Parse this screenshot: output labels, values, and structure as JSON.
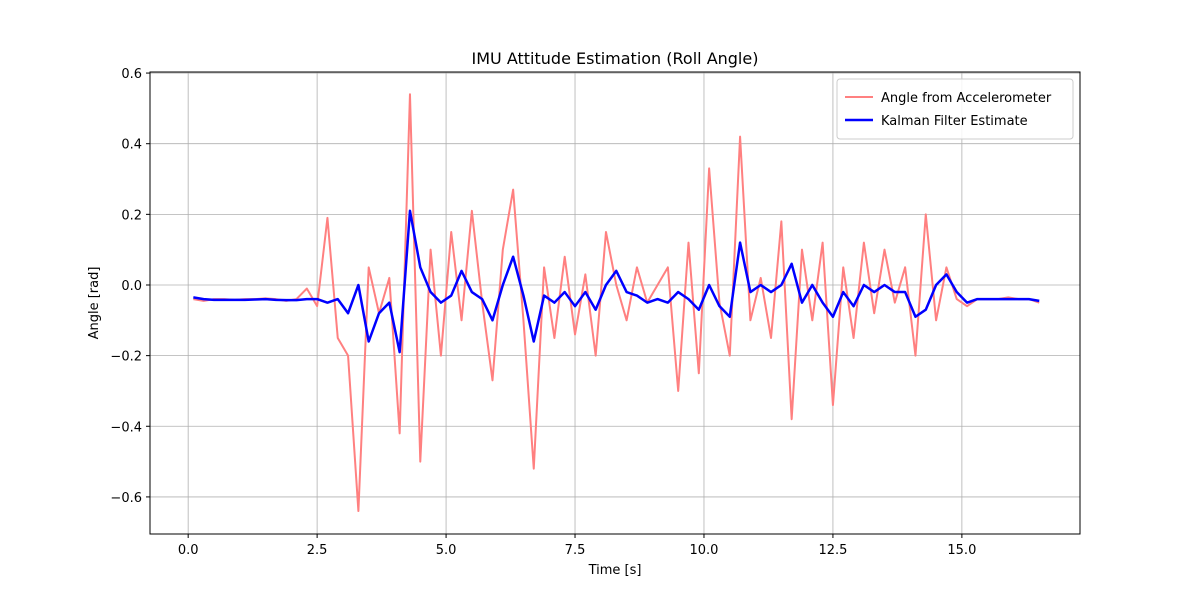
{
  "chart_data": {
    "type": "line",
    "title": "IMU Attitude Estimation (Roll Angle)",
    "x_label": "Time [s]",
    "y_label": "Angle [rad]",
    "x": [
      0.1,
      0.3,
      0.5,
      0.7,
      0.9,
      1.1,
      1.3,
      1.5,
      1.7,
      1.9,
      2.1,
      2.3,
      2.5,
      2.7,
      2.9,
      3.1,
      3.3,
      3.5,
      3.7,
      3.9,
      4.1,
      4.3,
      4.5,
      4.7,
      4.9,
      5.1,
      5.3,
      5.5,
      5.7,
      5.9,
      6.1,
      6.3,
      6.5,
      6.7,
      6.9,
      7.1,
      7.3,
      7.5,
      7.7,
      7.9,
      8.1,
      8.3,
      8.5,
      8.7,
      8.9,
      9.1,
      9.3,
      9.5,
      9.7,
      9.9,
      10.1,
      10.3,
      10.5,
      10.7,
      10.9,
      11.1,
      11.3,
      11.5,
      11.7,
      11.9,
      12.1,
      12.3,
      12.5,
      12.7,
      12.9,
      13.1,
      13.3,
      13.5,
      13.7,
      13.9,
      14.1,
      14.3,
      14.5,
      14.7,
      14.9,
      15.1,
      15.3,
      15.5,
      15.7,
      15.9,
      16.1,
      16.3,
      16.5
    ],
    "series": [
      {
        "name": "Angle from Accelerometer",
        "color": "#ff8080",
        "width": 2,
        "values": [
          -0.04,
          -0.045,
          -0.04,
          -0.04,
          -0.042,
          -0.04,
          -0.04,
          -0.038,
          -0.04,
          -0.045,
          -0.04,
          -0.01,
          -0.06,
          0.19,
          -0.15,
          -0.2,
          -0.64,
          0.05,
          -0.08,
          0.02,
          -0.42,
          0.54,
          -0.5,
          0.1,
          -0.2,
          0.15,
          -0.1,
          0.21,
          -0.05,
          -0.27,
          0.1,
          0.27,
          -0.1,
          -0.52,
          0.05,
          -0.15,
          0.08,
          -0.14,
          0.03,
          -0.2,
          0.15,
          0.0,
          -0.1,
          0.05,
          -0.05,
          0.0,
          0.05,
          -0.3,
          0.12,
          -0.25,
          0.33,
          -0.05,
          -0.2,
          0.42,
          -0.1,
          0.02,
          -0.15,
          0.18,
          -0.38,
          0.1,
          -0.1,
          0.12,
          -0.34,
          0.05,
          -0.15,
          0.12,
          -0.08,
          0.1,
          -0.05,
          0.05,
          -0.2,
          0.2,
          -0.1,
          0.05,
          -0.04,
          -0.06,
          -0.04,
          -0.04,
          -0.04,
          -0.035,
          -0.04,
          -0.04,
          -0.05
        ]
      },
      {
        "name": "Kalman Filter Estimate",
        "color": "#0000ff",
        "width": 2.5,
        "values": [
          -0.035,
          -0.04,
          -0.042,
          -0.042,
          -0.042,
          -0.042,
          -0.041,
          -0.04,
          -0.042,
          -0.043,
          -0.043,
          -0.04,
          -0.04,
          -0.05,
          -0.04,
          -0.08,
          0.0,
          -0.16,
          -0.08,
          -0.05,
          -0.19,
          0.21,
          0.05,
          -0.02,
          -0.05,
          -0.03,
          0.04,
          -0.02,
          -0.04,
          -0.1,
          0.0,
          0.08,
          -0.03,
          -0.16,
          -0.03,
          -0.05,
          -0.02,
          -0.06,
          -0.02,
          -0.07,
          0.0,
          0.04,
          -0.02,
          -0.03,
          -0.05,
          -0.04,
          -0.05,
          -0.02,
          -0.04,
          -0.07,
          0.0,
          -0.06,
          -0.09,
          0.12,
          -0.02,
          0.0,
          -0.02,
          0.0,
          0.06,
          -0.05,
          0.0,
          -0.05,
          -0.09,
          -0.02,
          -0.06,
          0.0,
          -0.02,
          0.0,
          -0.02,
          -0.02,
          -0.09,
          -0.07,
          0.0,
          0.03,
          -0.02,
          -0.05,
          -0.04,
          -0.04,
          -0.04,
          -0.04,
          -0.04,
          -0.04,
          -0.045
        ]
      }
    ],
    "xlim": [
      -0.74,
      17.29
    ],
    "ylim": [
      -0.705,
      0.603
    ],
    "xticks": [
      {
        "value": 0,
        "label": "0.0"
      },
      2.5,
      {
        "value": 5,
        "label": "5.0"
      },
      7.5,
      {
        "value": 10,
        "label": "10.0"
      },
      12.5,
      {
        "value": 15,
        "label": "15.0"
      }
    ],
    "yticks": [
      {
        "value": -0.6,
        "label": "−0.6"
      },
      {
        "value": -0.4,
        "label": "−0.4"
      },
      {
        "value": -0.2,
        "label": "−0.2"
      },
      {
        "value": 0,
        "label": "0.0"
      },
      0.2,
      0.4,
      0.6
    ],
    "grid": true,
    "legend": "upper right"
  }
}
